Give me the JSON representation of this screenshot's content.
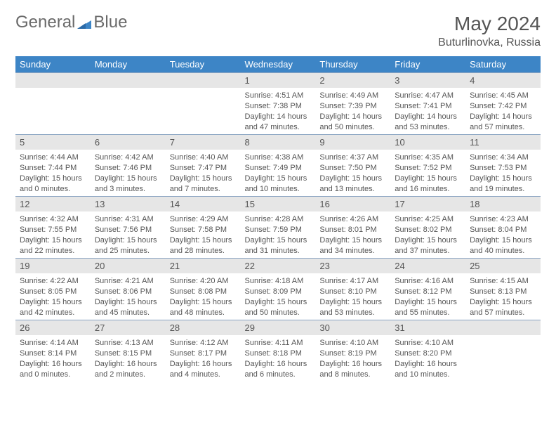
{
  "brand": {
    "part1": "General",
    "part2": "Blue",
    "accent": "#3d85c6",
    "text_color": "#6a6a6a"
  },
  "title": "May 2024",
  "location": "Buturlinovka, Russia",
  "header_bg": "#3d85c6",
  "header_fg": "#ffffff",
  "daynum_bg": "#e6e6e6",
  "row_sep": "#8aa4c2",
  "days_of_week": [
    "Sunday",
    "Monday",
    "Tuesday",
    "Wednesday",
    "Thursday",
    "Friday",
    "Saturday"
  ],
  "weeks": [
    [
      null,
      null,
      null,
      {
        "n": "1",
        "sunrise": "4:51 AM",
        "sunset": "7:38 PM",
        "daylight": "14 hours and 47 minutes."
      },
      {
        "n": "2",
        "sunrise": "4:49 AM",
        "sunset": "7:39 PM",
        "daylight": "14 hours and 50 minutes."
      },
      {
        "n": "3",
        "sunrise": "4:47 AM",
        "sunset": "7:41 PM",
        "daylight": "14 hours and 53 minutes."
      },
      {
        "n": "4",
        "sunrise": "4:45 AM",
        "sunset": "7:42 PM",
        "daylight": "14 hours and 57 minutes."
      }
    ],
    [
      {
        "n": "5",
        "sunrise": "4:44 AM",
        "sunset": "7:44 PM",
        "daylight": "15 hours and 0 minutes."
      },
      {
        "n": "6",
        "sunrise": "4:42 AM",
        "sunset": "7:46 PM",
        "daylight": "15 hours and 3 minutes."
      },
      {
        "n": "7",
        "sunrise": "4:40 AM",
        "sunset": "7:47 PM",
        "daylight": "15 hours and 7 minutes."
      },
      {
        "n": "8",
        "sunrise": "4:38 AM",
        "sunset": "7:49 PM",
        "daylight": "15 hours and 10 minutes."
      },
      {
        "n": "9",
        "sunrise": "4:37 AM",
        "sunset": "7:50 PM",
        "daylight": "15 hours and 13 minutes."
      },
      {
        "n": "10",
        "sunrise": "4:35 AM",
        "sunset": "7:52 PM",
        "daylight": "15 hours and 16 minutes."
      },
      {
        "n": "11",
        "sunrise": "4:34 AM",
        "sunset": "7:53 PM",
        "daylight": "15 hours and 19 minutes."
      }
    ],
    [
      {
        "n": "12",
        "sunrise": "4:32 AM",
        "sunset": "7:55 PM",
        "daylight": "15 hours and 22 minutes."
      },
      {
        "n": "13",
        "sunrise": "4:31 AM",
        "sunset": "7:56 PM",
        "daylight": "15 hours and 25 minutes."
      },
      {
        "n": "14",
        "sunrise": "4:29 AM",
        "sunset": "7:58 PM",
        "daylight": "15 hours and 28 minutes."
      },
      {
        "n": "15",
        "sunrise": "4:28 AM",
        "sunset": "7:59 PM",
        "daylight": "15 hours and 31 minutes."
      },
      {
        "n": "16",
        "sunrise": "4:26 AM",
        "sunset": "8:01 PM",
        "daylight": "15 hours and 34 minutes."
      },
      {
        "n": "17",
        "sunrise": "4:25 AM",
        "sunset": "8:02 PM",
        "daylight": "15 hours and 37 minutes."
      },
      {
        "n": "18",
        "sunrise": "4:23 AM",
        "sunset": "8:04 PM",
        "daylight": "15 hours and 40 minutes."
      }
    ],
    [
      {
        "n": "19",
        "sunrise": "4:22 AM",
        "sunset": "8:05 PM",
        "daylight": "15 hours and 42 minutes."
      },
      {
        "n": "20",
        "sunrise": "4:21 AM",
        "sunset": "8:06 PM",
        "daylight": "15 hours and 45 minutes."
      },
      {
        "n": "21",
        "sunrise": "4:20 AM",
        "sunset": "8:08 PM",
        "daylight": "15 hours and 48 minutes."
      },
      {
        "n": "22",
        "sunrise": "4:18 AM",
        "sunset": "8:09 PM",
        "daylight": "15 hours and 50 minutes."
      },
      {
        "n": "23",
        "sunrise": "4:17 AM",
        "sunset": "8:10 PM",
        "daylight": "15 hours and 53 minutes."
      },
      {
        "n": "24",
        "sunrise": "4:16 AM",
        "sunset": "8:12 PM",
        "daylight": "15 hours and 55 minutes."
      },
      {
        "n": "25",
        "sunrise": "4:15 AM",
        "sunset": "8:13 PM",
        "daylight": "15 hours and 57 minutes."
      }
    ],
    [
      {
        "n": "26",
        "sunrise": "4:14 AM",
        "sunset": "8:14 PM",
        "daylight": "16 hours and 0 minutes."
      },
      {
        "n": "27",
        "sunrise": "4:13 AM",
        "sunset": "8:15 PM",
        "daylight": "16 hours and 2 minutes."
      },
      {
        "n": "28",
        "sunrise": "4:12 AM",
        "sunset": "8:17 PM",
        "daylight": "16 hours and 4 minutes."
      },
      {
        "n": "29",
        "sunrise": "4:11 AM",
        "sunset": "8:18 PM",
        "daylight": "16 hours and 6 minutes."
      },
      {
        "n": "30",
        "sunrise": "4:10 AM",
        "sunset": "8:19 PM",
        "daylight": "16 hours and 8 minutes."
      },
      {
        "n": "31",
        "sunrise": "4:10 AM",
        "sunset": "8:20 PM",
        "daylight": "16 hours and 10 minutes."
      },
      null
    ]
  ],
  "labels": {
    "sunrise": "Sunrise: ",
    "sunset": "Sunset: ",
    "daylight": "Daylight: "
  }
}
